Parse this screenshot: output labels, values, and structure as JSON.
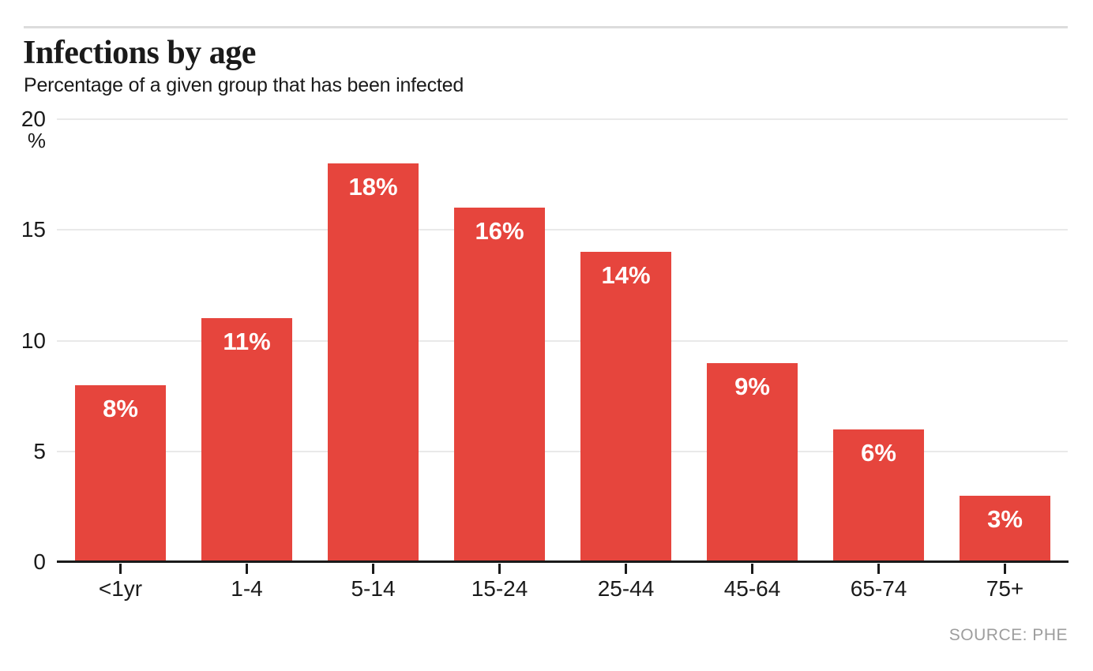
{
  "header": {
    "title": "Infections by age",
    "subtitle": "Percentage of a given group that has been infected"
  },
  "chart_data": {
    "type": "bar",
    "title": "Infections by age",
    "subtitle": "Percentage of a given group that has been infected",
    "categories": [
      "<1yr",
      "1-4",
      "5-14",
      "15-24",
      "25-44",
      "45-64",
      "65-74",
      "75+"
    ],
    "values": [
      8,
      11,
      18,
      16,
      14,
      9,
      6,
      3
    ],
    "value_labels": [
      "8%",
      "11%",
      "18%",
      "16%",
      "14%",
      "9%",
      "6%",
      "3%"
    ],
    "xlabel": "",
    "ylabel": "%",
    "ylim": [
      0,
      20
    ],
    "yticks": [
      0,
      5,
      10,
      15,
      20
    ],
    "grid": "horizontal",
    "legend": "none",
    "bar_color": "#e6453d"
  },
  "source": {
    "label": "SOURCE: PHE"
  },
  "colors": {
    "bar": "#e6453d",
    "gridline": "#e9e9e9",
    "axis": "#1a1a1a",
    "text": "#1a1a1a",
    "value_label": "#ffffff",
    "top_rule": "#dcdcdc",
    "source_text": "#9d9d9d"
  }
}
